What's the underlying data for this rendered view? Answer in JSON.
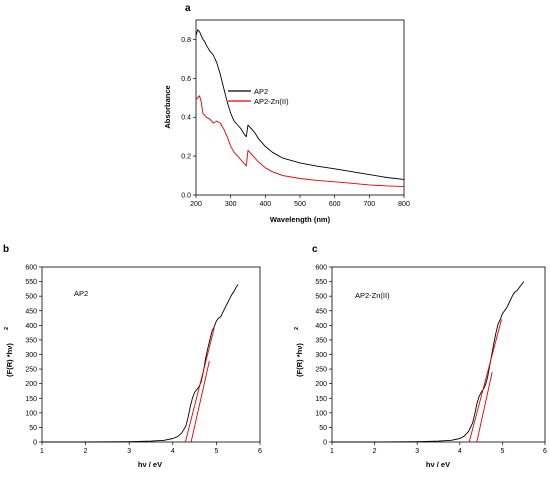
{
  "chart_data": [
    {
      "panel": "a",
      "type": "line",
      "xlabel": "Wavelength (nm)",
      "ylabel": "Absorbance",
      "xlim": [
        200,
        800
      ],
      "ylim": [
        0,
        0.9
      ],
      "xticks": [
        200,
        300,
        400,
        500,
        600,
        700,
        800
      ],
      "yticks": [
        0.0,
        0.2,
        0.4,
        0.6,
        0.8
      ],
      "tick_labels_y": [
        "0.0",
        "0.2",
        "0.4",
        "0.6",
        "0.8"
      ],
      "legend": "center-left",
      "series": [
        {
          "name": "AP2",
          "color": "#000000",
          "x": [
            200,
            205,
            210,
            215,
            220,
            225,
            230,
            240,
            250,
            260,
            270,
            280,
            290,
            300,
            310,
            320,
            330,
            340,
            345,
            350,
            355,
            360,
            370,
            380,
            400,
            420,
            450,
            500,
            550,
            600,
            650,
            700,
            750,
            800
          ],
          "y": [
            0.82,
            0.85,
            0.84,
            0.82,
            0.8,
            0.79,
            0.77,
            0.74,
            0.72,
            0.68,
            0.62,
            0.55,
            0.48,
            0.42,
            0.38,
            0.36,
            0.34,
            0.31,
            0.3,
            0.36,
            0.35,
            0.34,
            0.32,
            0.29,
            0.25,
            0.22,
            0.19,
            0.165,
            0.148,
            0.135,
            0.12,
            0.105,
            0.09,
            0.08
          ]
        },
        {
          "name": "AP2-Zn(II)",
          "color": "#e60000",
          "x": [
            200,
            205,
            210,
            215,
            220,
            230,
            240,
            250,
            260,
            270,
            280,
            290,
            300,
            310,
            320,
            330,
            340,
            345,
            350,
            355,
            360,
            370,
            380,
            400,
            420,
            450,
            500,
            550,
            600,
            650,
            700,
            750,
            800
          ],
          "y": [
            0.49,
            0.5,
            0.51,
            0.48,
            0.42,
            0.4,
            0.39,
            0.37,
            0.38,
            0.37,
            0.34,
            0.3,
            0.25,
            0.22,
            0.2,
            0.18,
            0.16,
            0.15,
            0.23,
            0.22,
            0.21,
            0.19,
            0.17,
            0.14,
            0.12,
            0.1,
            0.085,
            0.075,
            0.068,
            0.06,
            0.052,
            0.047,
            0.044
          ]
        }
      ]
    },
    {
      "panel": "b",
      "type": "line",
      "xlabel": "hν / eV",
      "ylabel": "(F(R) *hν)²",
      "ylabel_base": "(F(R) *hν)",
      "ylabel_sup": "2",
      "inset_label": "AP2",
      "xlim": [
        1,
        6
      ],
      "ylim": [
        0,
        600
      ],
      "xticks": [
        1,
        2,
        3,
        4,
        5,
        6
      ],
      "yticks": [
        0,
        50,
        100,
        150,
        200,
        250,
        300,
        350,
        400,
        450,
        500,
        550,
        600
      ],
      "series": [
        {
          "name": "",
          "color": "#000000",
          "x": [
            1.0,
            2.0,
            3.0,
            3.5,
            3.8,
            4.0,
            4.1,
            4.2,
            4.3,
            4.35,
            4.4,
            4.45,
            4.5,
            4.55,
            4.6,
            4.65,
            4.7,
            4.75,
            4.8,
            4.85,
            4.9,
            4.95,
            5.0,
            5.05,
            5.1,
            5.15,
            5.2,
            5.25,
            5.3,
            5.35,
            5.4,
            5.45,
            5.5
          ],
          "y": [
            0,
            0,
            1,
            3,
            6,
            12,
            18,
            30,
            55,
            85,
            120,
            150,
            170,
            180,
            190,
            205,
            240,
            285,
            320,
            350,
            380,
            395,
            415,
            425,
            430,
            445,
            460,
            475,
            490,
            505,
            515,
            530,
            540
          ]
        },
        {
          "name": "",
          "color": "#e60000",
          "x": [
            4.29,
            4.95
          ],
          "y": [
            0,
            390
          ]
        },
        {
          "name": "",
          "color": "#e60000",
          "x": [
            4.42,
            4.84
          ],
          "y": [
            0,
            278
          ]
        }
      ]
    },
    {
      "panel": "c",
      "type": "line",
      "xlabel": "hν / eV",
      "ylabel": "(F(R) *hν)²",
      "ylabel_base": "(F(R) *hν)",
      "ylabel_sup": "2",
      "inset_label": "AP2-Zn(II)",
      "xlim": [
        1,
        6
      ],
      "ylim": [
        0,
        600
      ],
      "xticks": [
        1,
        2,
        3,
        4,
        5,
        6
      ],
      "yticks": [
        0,
        50,
        100,
        150,
        200,
        250,
        300,
        350,
        400,
        450,
        500,
        550,
        600
      ],
      "series": [
        {
          "name": "",
          "color": "#000000",
          "x": [
            1.0,
            2.0,
            3.0,
            3.5,
            3.8,
            4.0,
            4.1,
            4.2,
            4.3,
            4.35,
            4.4,
            4.45,
            4.5,
            4.55,
            4.6,
            4.65,
            4.7,
            4.75,
            4.8,
            4.85,
            4.9,
            4.95,
            5.0,
            5.05,
            5.1,
            5.15,
            5.2,
            5.25,
            5.3,
            5.35,
            5.4,
            5.45,
            5.5
          ],
          "y": [
            0,
            0,
            1,
            3,
            6,
            12,
            20,
            35,
            65,
            95,
            130,
            155,
            170,
            180,
            195,
            220,
            260,
            300,
            340,
            375,
            405,
            420,
            440,
            450,
            460,
            475,
            490,
            505,
            515,
            520,
            530,
            540,
            550
          ]
        },
        {
          "name": "",
          "color": "#e60000",
          "x": [
            4.22,
            4.98
          ],
          "y": [
            0,
            420
          ]
        },
        {
          "name": "",
          "color": "#e60000",
          "x": [
            4.4,
            4.76
          ],
          "y": [
            0,
            240
          ]
        }
      ]
    }
  ]
}
